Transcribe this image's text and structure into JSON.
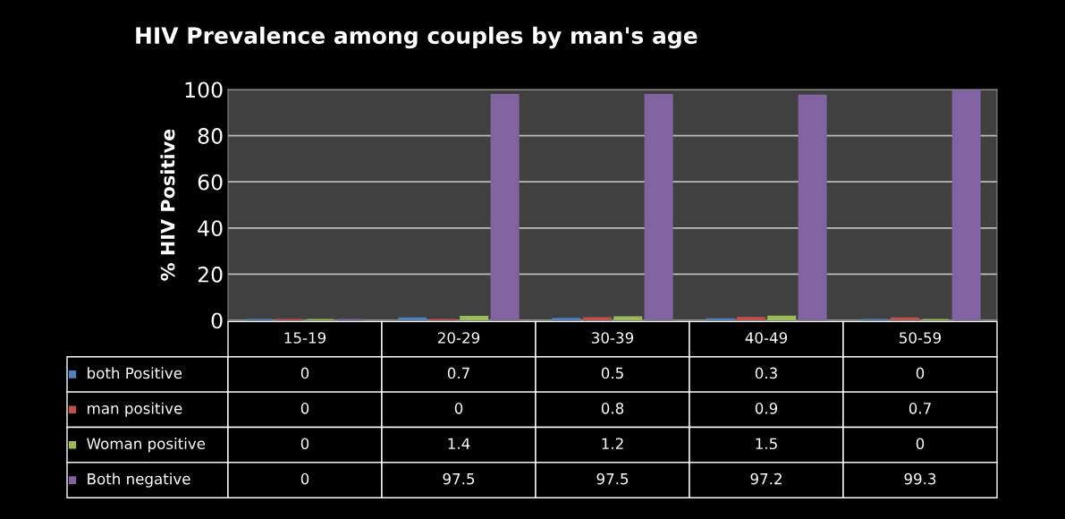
{
  "chart_data": {
    "type": "bar",
    "title": "HIV Prevalence among couples by man's age",
    "ylabel": "% HIV Positive",
    "categories": [
      "15-19",
      "20-29",
      "30-39",
      "40-49",
      "50-59"
    ],
    "series": [
      {
        "name": "both Positive",
        "color": "#4f81bd",
        "values": [
          0,
          0.7,
          0.5,
          0.3,
          0
        ]
      },
      {
        "name": "man positive",
        "color": "#c0504d",
        "values": [
          0,
          0,
          0.8,
          0.9,
          0.7
        ]
      },
      {
        "name": "Woman positive",
        "color": "#9bbb59",
        "values": [
          0,
          1.4,
          1.2,
          1.5,
          0
        ]
      },
      {
        "name": "Both negative",
        "color": "#8064a2",
        "values": [
          0,
          97.5,
          97.5,
          97.2,
          99.3
        ]
      }
    ],
    "ylim": [
      0,
      100
    ],
    "yticks": [
      0,
      20,
      40,
      60,
      80,
      100
    ],
    "grid": "y",
    "data_labels": true,
    "legend": "bottom left"
  }
}
